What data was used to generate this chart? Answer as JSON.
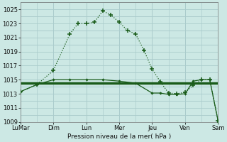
{
  "background_color": "#cce8e4",
  "grid_major_color": "#aacccc",
  "grid_minor_color": "#bbdddd",
  "line_color": "#1a5c1a",
  "xlabel": "Pression niveau de la mer( hPa )",
  "ylim": [
    1009,
    1026
  ],
  "yticks": [
    1009,
    1011,
    1013,
    1015,
    1017,
    1019,
    1021,
    1023,
    1025
  ],
  "x_labels": [
    "LuMar",
    "Dim",
    "Lun",
    "Mer",
    "Jeu",
    "Ven",
    "Sam"
  ],
  "x_positions": [
    0,
    2,
    4,
    6,
    8,
    10,
    12
  ],
  "xlim": [
    0,
    12
  ],
  "series1_x": [
    0,
    1,
    2,
    3,
    3.5,
    4,
    4.5,
    5,
    5.5,
    6,
    6.5,
    7,
    7.5,
    8,
    8.5,
    9,
    9.5,
    10,
    10.5,
    11,
    11.5,
    12
  ],
  "series1_y": [
    1013.3,
    1014.3,
    1016.3,
    1021.5,
    1023.0,
    1023.0,
    1023.2,
    1024.8,
    1024.2,
    1023.2,
    1022.0,
    1021.5,
    1019.2,
    1016.5,
    1014.7,
    1013.1,
    1013.0,
    1013.2,
    1014.2,
    1015.0,
    1015.0,
    1009.2
  ],
  "series2_x": [
    0,
    12
  ],
  "series2_y": [
    1014.5,
    1014.5
  ],
  "series3_x": [
    0,
    1,
    2,
    3,
    4,
    5,
    6,
    7,
    8,
    8.5,
    9,
    9.5,
    10,
    10.5,
    11,
    11.5,
    12
  ],
  "series3_y": [
    1013.3,
    1014.3,
    1015.0,
    1015.0,
    1015.0,
    1015.0,
    1014.8,
    1014.5,
    1013.1,
    1013.1,
    1012.9,
    1012.9,
    1013.0,
    1014.8,
    1015.0,
    1015.0,
    1009.2
  ]
}
